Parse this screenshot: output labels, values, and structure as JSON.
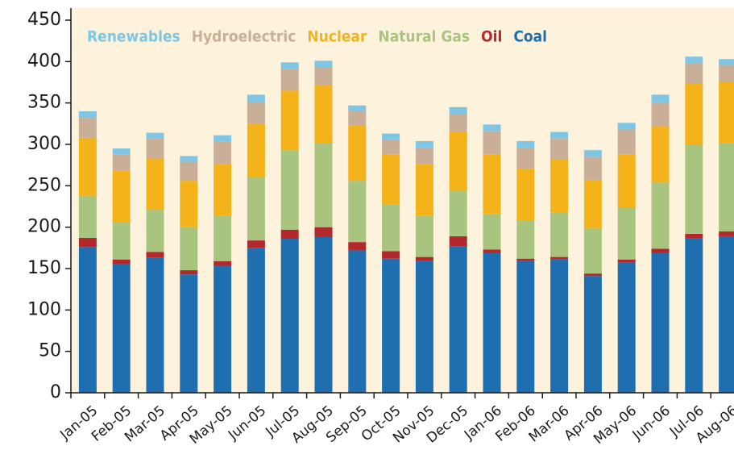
{
  "chart_data": {
    "type": "stacked_bar",
    "categories": [
      "Jan-05",
      "Feb-05",
      "Mar-05",
      "Apr-05",
      "May-05",
      "Jun-05",
      "Jul-05",
      "Aug-05",
      "Sep-05",
      "Oct-05",
      "Nov-05",
      "Dec-05",
      "Jan-06",
      "Feb-06",
      "Mar-06",
      "Apr-06",
      "May-06",
      "Jun-06",
      "Jul-06",
      "Aug-06"
    ],
    "series": [
      {
        "name": "Coal",
        "color": "#1f6fb0",
        "values": [
          176,
          155,
          163,
          143,
          153,
          175,
          186,
          188,
          172,
          162,
          159,
          177,
          169,
          159,
          161,
          141,
          157,
          169,
          187,
          189
        ]
      },
      {
        "name": "Oil",
        "color": "#b3282d",
        "values": [
          11,
          6,
          7,
          5,
          6,
          9,
          11,
          12,
          10,
          9,
          5,
          12,
          4,
          3,
          3,
          3,
          4,
          5,
          5,
          6
        ]
      },
      {
        "name": "Natural Gas",
        "color": "#a9c47f",
        "values": [
          51,
          45,
          51,
          52,
          55,
          76,
          96,
          101,
          74,
          56,
          50,
          55,
          43,
          46,
          54,
          55,
          63,
          80,
          108,
          107
        ]
      },
      {
        "name": "Nuclear",
        "color": "#f5b31b",
        "values": [
          70,
          62,
          62,
          56,
          62,
          65,
          72,
          71,
          67,
          61,
          62,
          71,
          72,
          63,
          64,
          58,
          64,
          68,
          74,
          73
        ]
      },
      {
        "name": "Hydroelectric",
        "color": "#c9ae98",
        "values": [
          24,
          20,
          24,
          23,
          27,
          26,
          26,
          21,
          17,
          18,
          20,
          22,
          28,
          25,
          25,
          28,
          30,
          28,
          24,
          21
        ]
      },
      {
        "name": "Renewables",
        "color": "#7fc6e4",
        "values": [
          8,
          7,
          7,
          7,
          8,
          9,
          8,
          8,
          7,
          7,
          8,
          8,
          8,
          8,
          8,
          8,
          8,
          10,
          8,
          7
        ]
      }
    ],
    "ylim": [
      0,
      450
    ],
    "yticks": [
      0,
      50,
      100,
      150,
      200,
      250,
      300,
      350,
      400,
      450
    ],
    "legend": "top",
    "background": "#fdf2dc"
  }
}
